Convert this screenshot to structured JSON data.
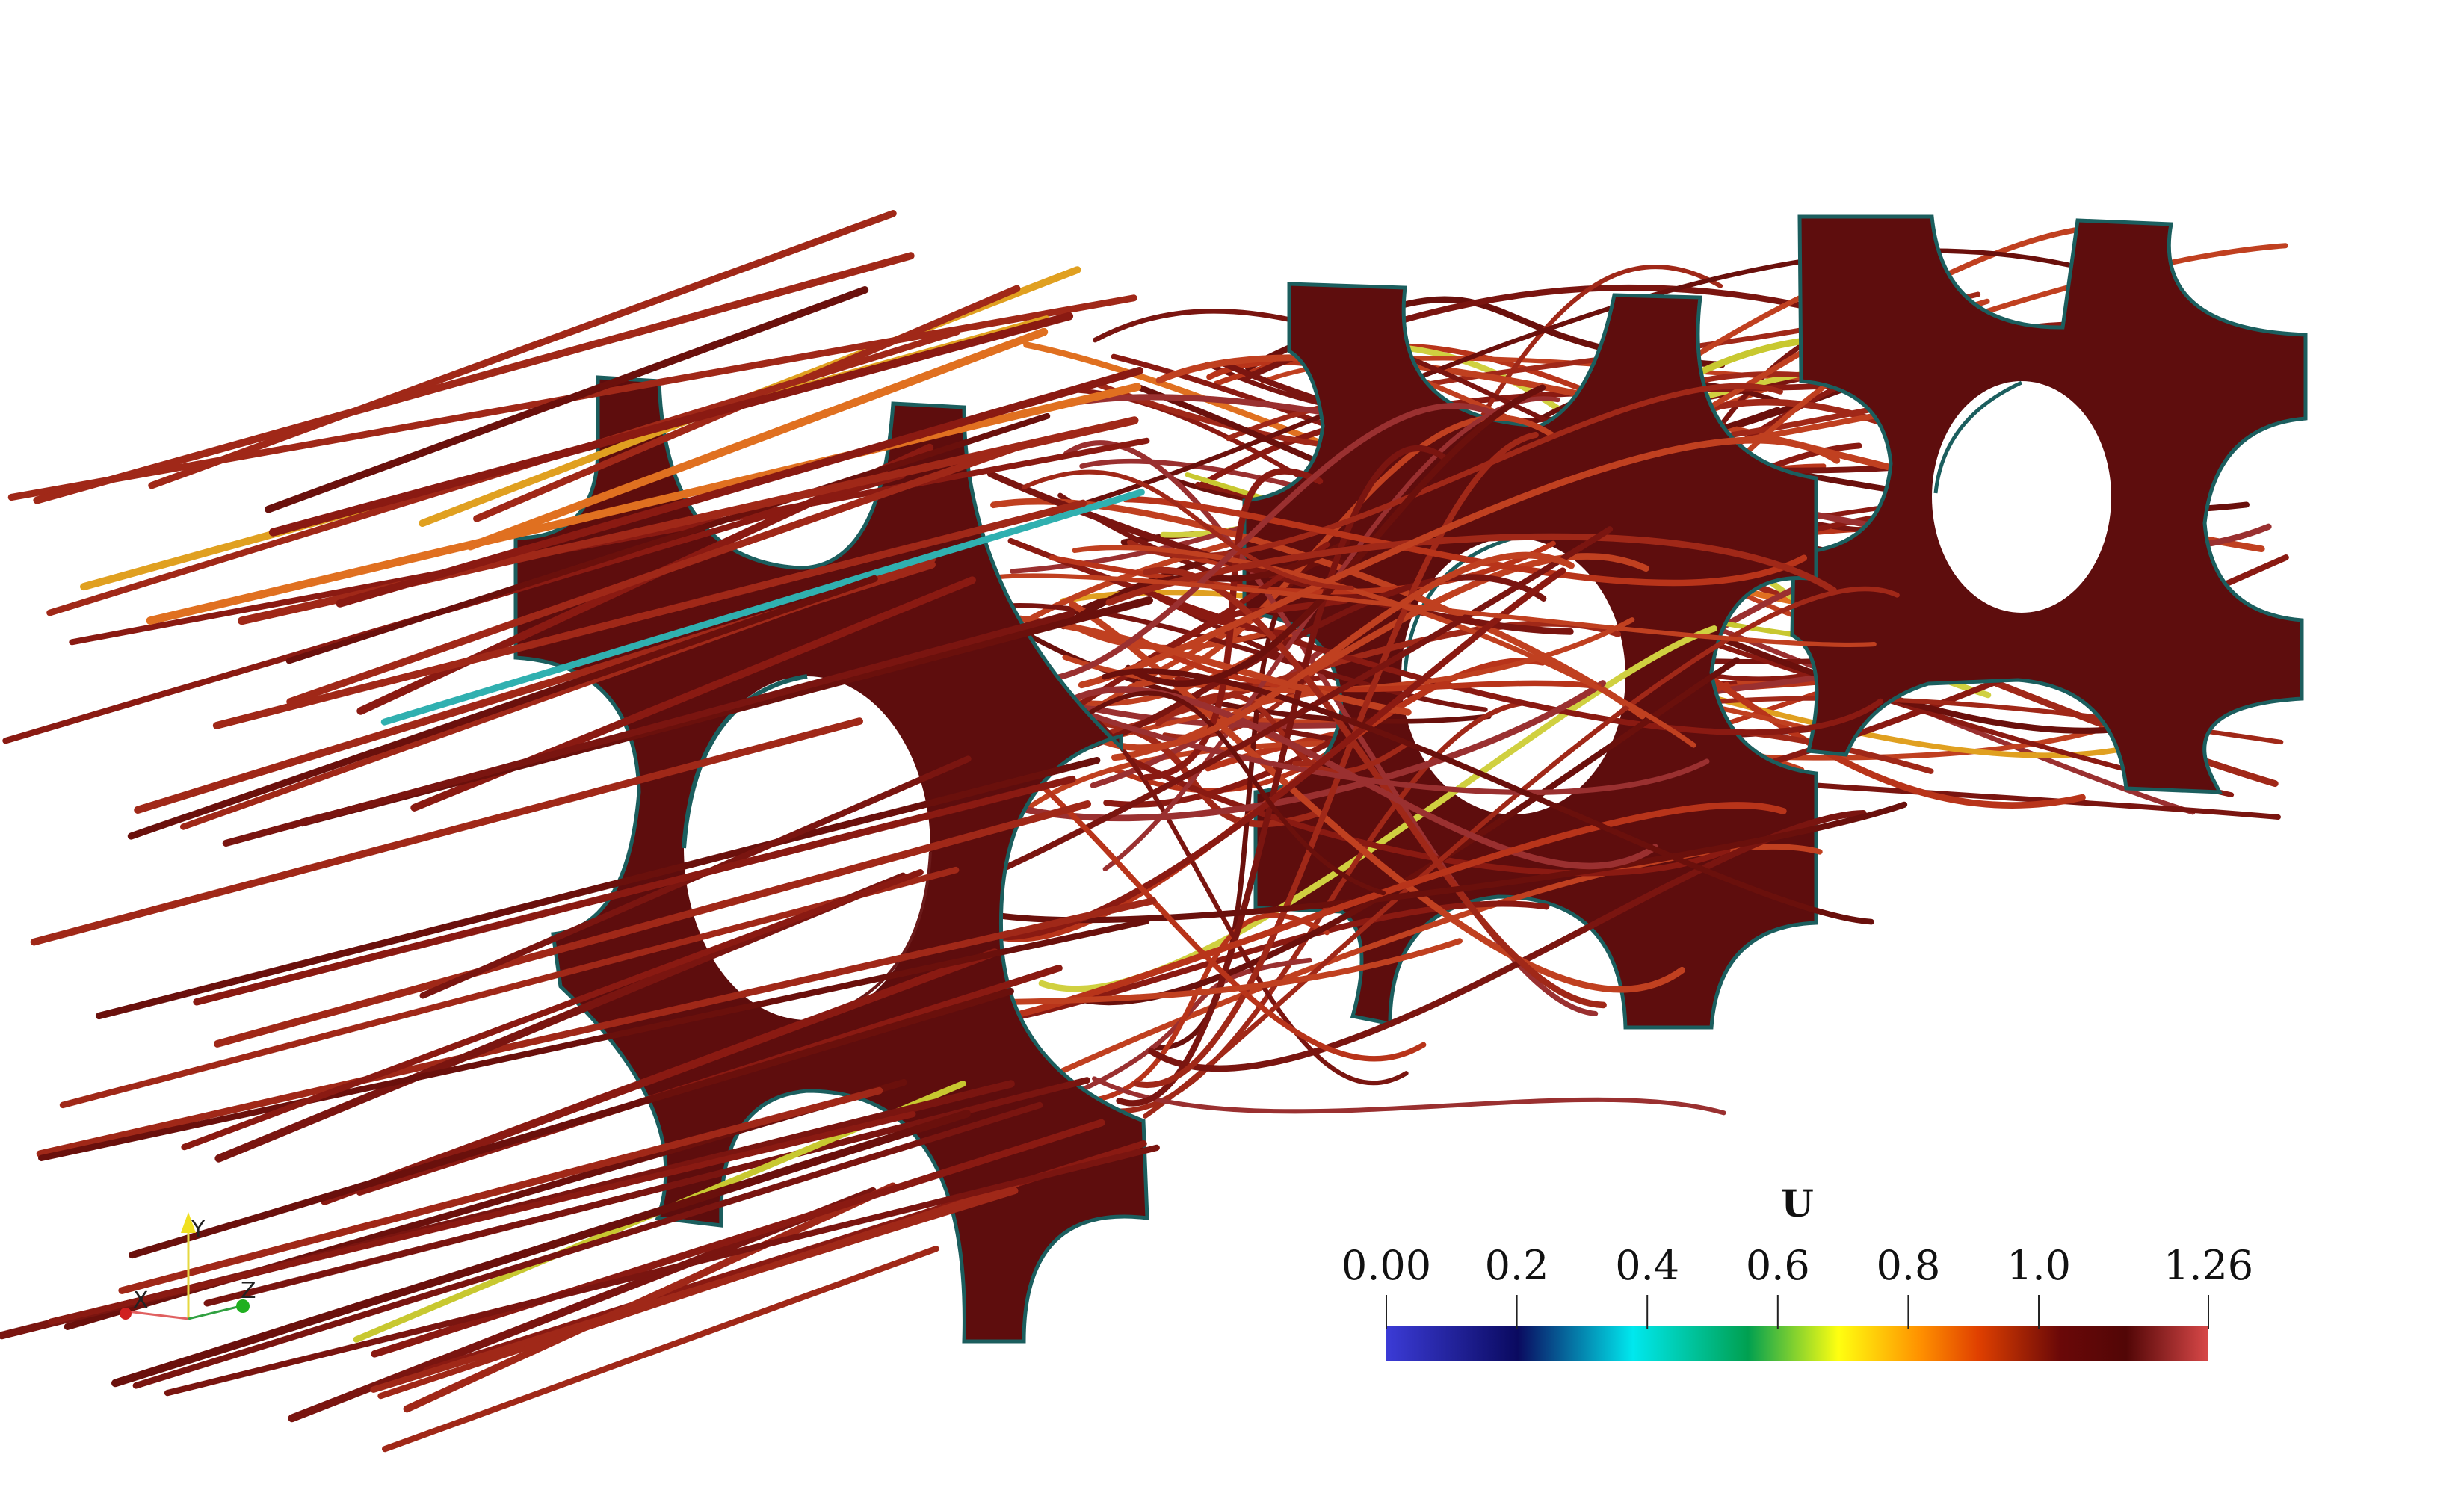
{
  "colorbar": {
    "title": "U",
    "ticks": [
      {
        "value": 0.0,
        "label": "0.00"
      },
      {
        "value": 0.2,
        "label": "0.2"
      },
      {
        "value": 0.4,
        "label": "0.4"
      },
      {
        "value": 0.6,
        "label": "0.6"
      },
      {
        "value": 0.8,
        "label": "0.8"
      },
      {
        "value": 1.0,
        "label": "1.0"
      },
      {
        "value": 1.26,
        "label": "1.26"
      }
    ],
    "range": [
      0.0,
      1.26
    ],
    "colormap": [
      "#3b3bd6",
      "#0a0a60",
      "#00e8ee",
      "#00a050",
      "#40a010",
      "#ffff10",
      "#ff9000",
      "#e04000",
      "#6a0808",
      "#520606",
      "#d84848"
    ]
  },
  "orientation_axes": {
    "x": "X",
    "y": "Y",
    "z": "Z"
  },
  "colors": {
    "structure": "#5e0d0d",
    "structure_edge": "#1b5e5e",
    "streamline_dark": "#7a1510",
    "streamline_mid": "#b8341a"
  }
}
